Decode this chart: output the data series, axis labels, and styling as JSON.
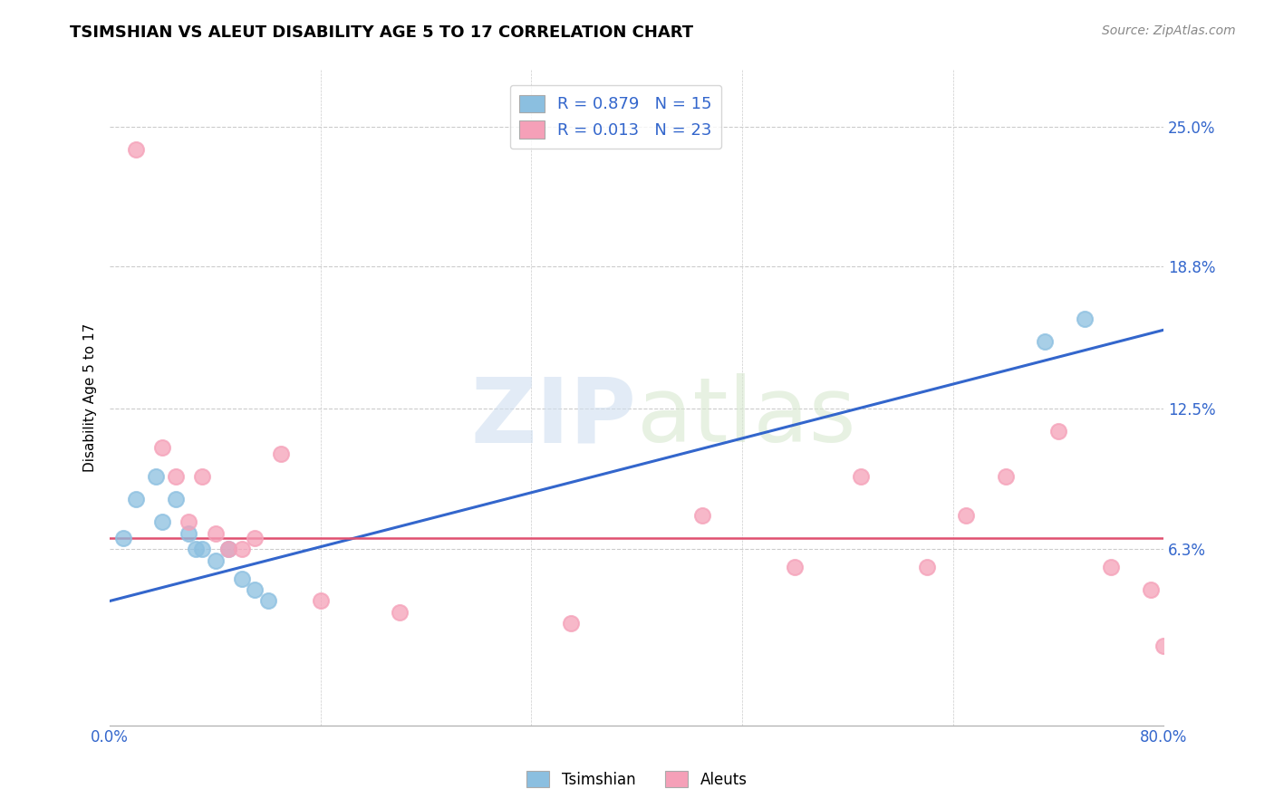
{
  "title": "TSIMSHIAN VS ALEUT DISABILITY AGE 5 TO 17 CORRELATION CHART",
  "source": "Source: ZipAtlas.com",
  "ylabel": "Disability Age 5 to 17",
  "xlim": [
    0.0,
    80.0
  ],
  "ylim": [
    -1.5,
    27.5
  ],
  "ytick_vals": [
    6.3,
    12.5,
    18.8,
    25.0
  ],
  "xtick_positions": [
    0.0,
    16.0,
    32.0,
    48.0,
    64.0,
    80.0
  ],
  "xtick_labels": [
    "0.0%",
    "",
    "",
    "",
    "",
    "80.0%"
  ],
  "grid_color": "#cccccc",
  "background_color": "#ffffff",
  "tsimshian_color": "#8bbfe0",
  "aleut_color": "#f5a0b8",
  "tsimshian_line_color": "#3366cc",
  "aleut_line_color": "#e05070",
  "tsimshian_R": 0.879,
  "tsimshian_N": 15,
  "aleut_R": 0.013,
  "aleut_N": 23,
  "tsimshian_x": [
    1.0,
    2.0,
    3.5,
    4.0,
    5.0,
    6.0,
    6.5,
    7.0,
    8.0,
    9.0,
    10.0,
    11.0,
    12.0,
    71.0,
    74.0
  ],
  "tsimshian_y": [
    6.8,
    8.5,
    9.5,
    7.5,
    8.5,
    7.0,
    6.3,
    6.3,
    5.8,
    6.3,
    5.0,
    4.5,
    4.0,
    15.5,
    16.5
  ],
  "aleut_x": [
    2.0,
    4.0,
    5.0,
    6.0,
    7.0,
    8.0,
    9.0,
    10.0,
    11.0,
    13.0,
    16.0,
    22.0,
    35.0,
    45.0,
    52.0,
    57.0,
    62.0,
    65.0,
    68.0,
    72.0,
    76.0,
    79.0,
    80.0
  ],
  "aleut_y": [
    24.0,
    10.8,
    9.5,
    7.5,
    9.5,
    7.0,
    6.3,
    6.3,
    6.8,
    10.5,
    4.0,
    3.5,
    3.0,
    7.8,
    5.5,
    9.5,
    5.5,
    7.8,
    9.5,
    11.5,
    5.5,
    4.5,
    2.0
  ],
  "tsimshian_line_y0": 4.0,
  "tsimshian_line_y1": 16.0,
  "aleut_line_y0": 6.8,
  "aleut_line_y1": 6.8,
  "watermark_zip": "ZIP",
  "watermark_atlas": "atlas",
  "figsize": [
    14.06,
    8.92
  ],
  "dpi": 100
}
